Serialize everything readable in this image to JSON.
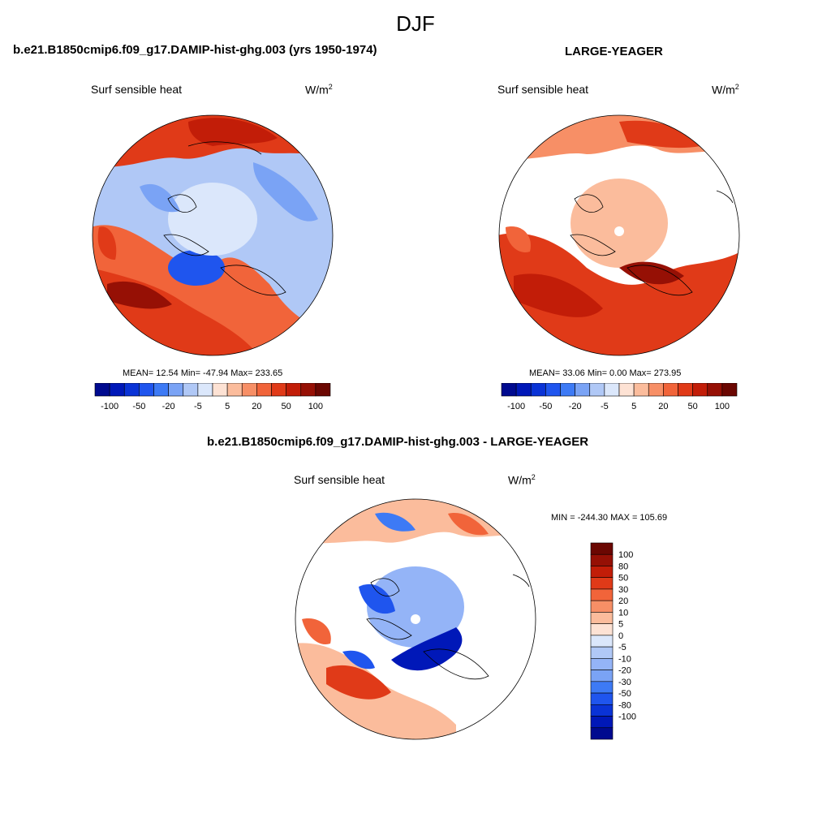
{
  "header": {
    "season": "DJF"
  },
  "panels": {
    "left": {
      "title": "b.e21.B1850cmip6.f09_g17.DAMIP-hist-ghg.003 (yrs 1950-1974)",
      "variable": "Surf sensible heat",
      "units_base": "W/m",
      "units_exp": "2",
      "stats": "MEAN=  12.54  Min= -47.94  Max= 233.65"
    },
    "right": {
      "title": "LARGE-YEAGER",
      "variable": "Surf sensible heat",
      "units_base": "W/m",
      "units_exp": "2",
      "stats": "MEAN=  33.06  Min=   0.00  Max= 273.95"
    },
    "diff": {
      "title": "b.e21.B1850cmip6.f09_g17.DAMIP-hist-ghg.003 - LARGE-YEAGER",
      "variable": "Surf sensible heat",
      "units_base": "W/m",
      "units_exp": "2",
      "stats": "MIN = -244.30 MAX = 105.69"
    }
  },
  "colorbars": {
    "horizontal": {
      "colors": [
        "#000a8f",
        "#0018b8",
        "#0a33d6",
        "#1f55ee",
        "#3d7af5",
        "#7aa3f5",
        "#b0c8f6",
        "#dbe7fb",
        "#fde2d4",
        "#fbbc9c",
        "#f78f66",
        "#f1643a",
        "#e03a18",
        "#c21d08",
        "#961005",
        "#6b0702"
      ],
      "tick_labels": [
        "-100",
        "-50",
        "-20",
        "-5",
        "5",
        "20",
        "50",
        "100"
      ]
    },
    "vertical": {
      "colors": [
        "#6b0702",
        "#961005",
        "#c21d08",
        "#e03a18",
        "#f1643a",
        "#f78f66",
        "#fbbc9c",
        "#fde2d4",
        "#dbe7fb",
        "#b0c8f6",
        "#94b4f7",
        "#7aa3f5",
        "#3d7af5",
        "#1f55ee",
        "#0a33d6",
        "#0018b8",
        "#000a8f"
      ],
      "tick_labels": [
        "100",
        "80",
        "50",
        "30",
        "20",
        "10",
        "5",
        "0",
        "-5",
        "-10",
        "-20",
        "-30",
        "-50",
        "-80",
        "-100"
      ]
    }
  },
  "colors": {
    "cold_strong": "#1f55ee",
    "cold_weak": "#b0c8f6",
    "warm_weak": "#fbbc9c",
    "warm_strong": "#e03a18",
    "warm_extreme": "#961005",
    "pole_missing": "#ffffff"
  }
}
